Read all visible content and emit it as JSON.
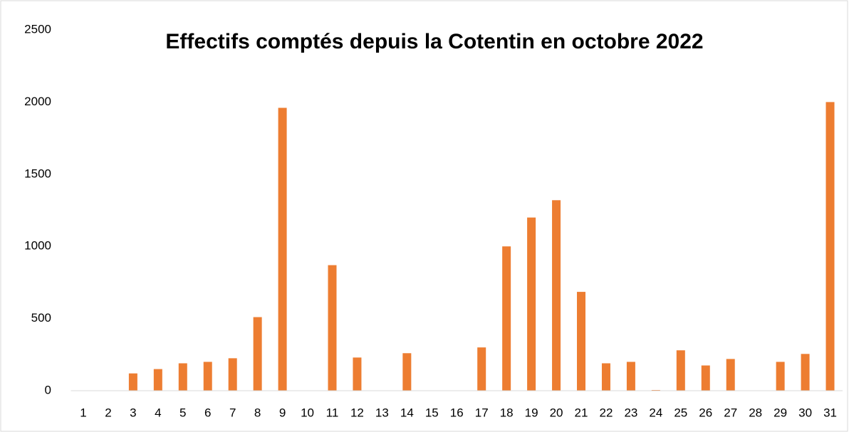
{
  "chart_data": {
    "type": "bar",
    "title": "Effectifs comptés depuis la Cotentin en octobre 2022",
    "categories": [
      1,
      2,
      3,
      4,
      5,
      6,
      7,
      8,
      9,
      10,
      11,
      12,
      13,
      14,
      15,
      16,
      17,
      18,
      19,
      20,
      21,
      22,
      23,
      24,
      25,
      26,
      27,
      28,
      29,
      30,
      31
    ],
    "values": [
      0,
      0,
      120,
      150,
      190,
      200,
      225,
      510,
      1960,
      0,
      870,
      230,
      0,
      260,
      0,
      0,
      300,
      1000,
      1200,
      1320,
      685,
      190,
      200,
      5,
      280,
      175,
      220,
      0,
      200,
      255,
      2000
    ],
    "color": "#ed7d31",
    "ylim": [
      0,
      2500
    ],
    "yticks": [
      0,
      500,
      1000,
      1500,
      2000,
      2500
    ],
    "grid": false
  }
}
